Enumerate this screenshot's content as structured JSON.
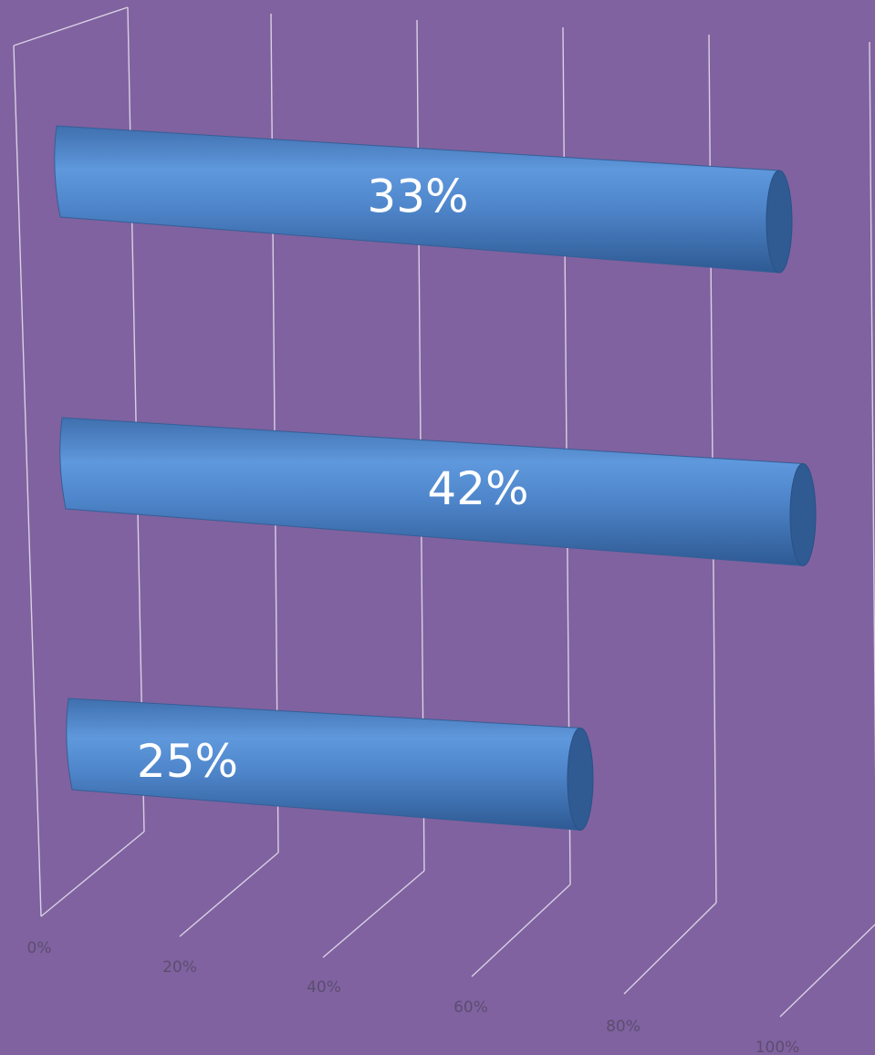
{
  "chart_data": {
    "type": "bar",
    "orientation": "horizontal",
    "style": "3d-cylinder",
    "categories": [
      "",
      "",
      ""
    ],
    "values": [
      0.33,
      0.42,
      0.25
    ],
    "data_labels": [
      "33%",
      "42%",
      "25%"
    ],
    "x_ticks": [
      "0%",
      "20%",
      "40%",
      "60%",
      "80%",
      "100%"
    ],
    "xlim": [
      0,
      1
    ],
    "grid": true,
    "legend": "none",
    "title": "",
    "xlabel": "",
    "ylabel": ""
  },
  "colors": {
    "background": "#8062a0",
    "bar": "#4f86cb",
    "bar_dark": "#2f5a92",
    "gridline": "#d8d0e4",
    "data_label": "#ffffff",
    "tick_label": "#5b4d70"
  }
}
